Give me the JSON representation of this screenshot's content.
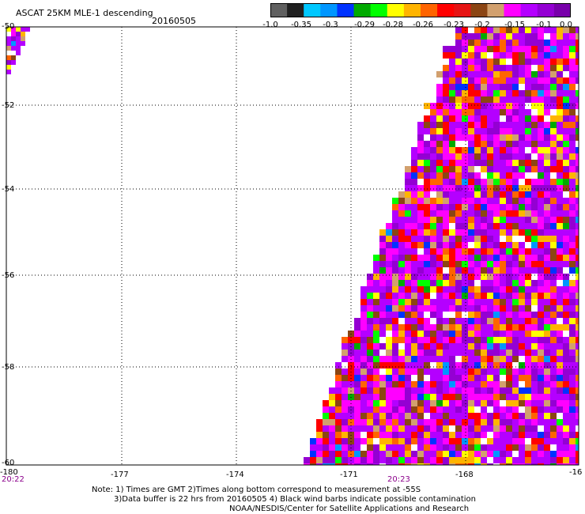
{
  "title": "ASCAT 25KM MLE-1 descending",
  "date": "20160505",
  "colorbar": {
    "colors": [
      "#606060",
      "#202020",
      "#00c8ff",
      "#0096ff",
      "#0032ff",
      "#00aa00",
      "#00ff00",
      "#ffff00",
      "#ffb400",
      "#ff6400",
      "#ff0000",
      "#e61414",
      "#8b4513",
      "#d2a06e",
      "#ff00ff",
      "#b400ff",
      "#9400d3",
      "#7800aa"
    ],
    "tick_labels": [
      "-1.0",
      "-0.35",
      "-0.3",
      "-0.29",
      "-0.28",
      "-0.26",
      "-0.23",
      "-0.2",
      "-0.15",
      "-0.1",
      "0.0"
    ]
  },
  "axes": {
    "lat_labels": [
      "-50",
      "-52",
      "-54",
      "-56",
      "-58",
      "-60"
    ],
    "lon_labels": [
      "-180",
      "-177",
      "-174",
      "-171",
      "-168",
      "-16"
    ],
    "lat_range": [
      -60,
      -50
    ],
    "lon_range": [
      -180,
      -165
    ]
  },
  "times": [
    "20:22",
    "20:23"
  ],
  "notes": [
    "Note: 1) Times are GMT 2)Times along bottom correspond to measurement at -55S",
    "3)Data buffer is 22 hrs from 20160505 4) Black wind barbs indicate possible contamination",
    "NOAA/NESDIS/Center for Satellite Applications and Research"
  ]
}
